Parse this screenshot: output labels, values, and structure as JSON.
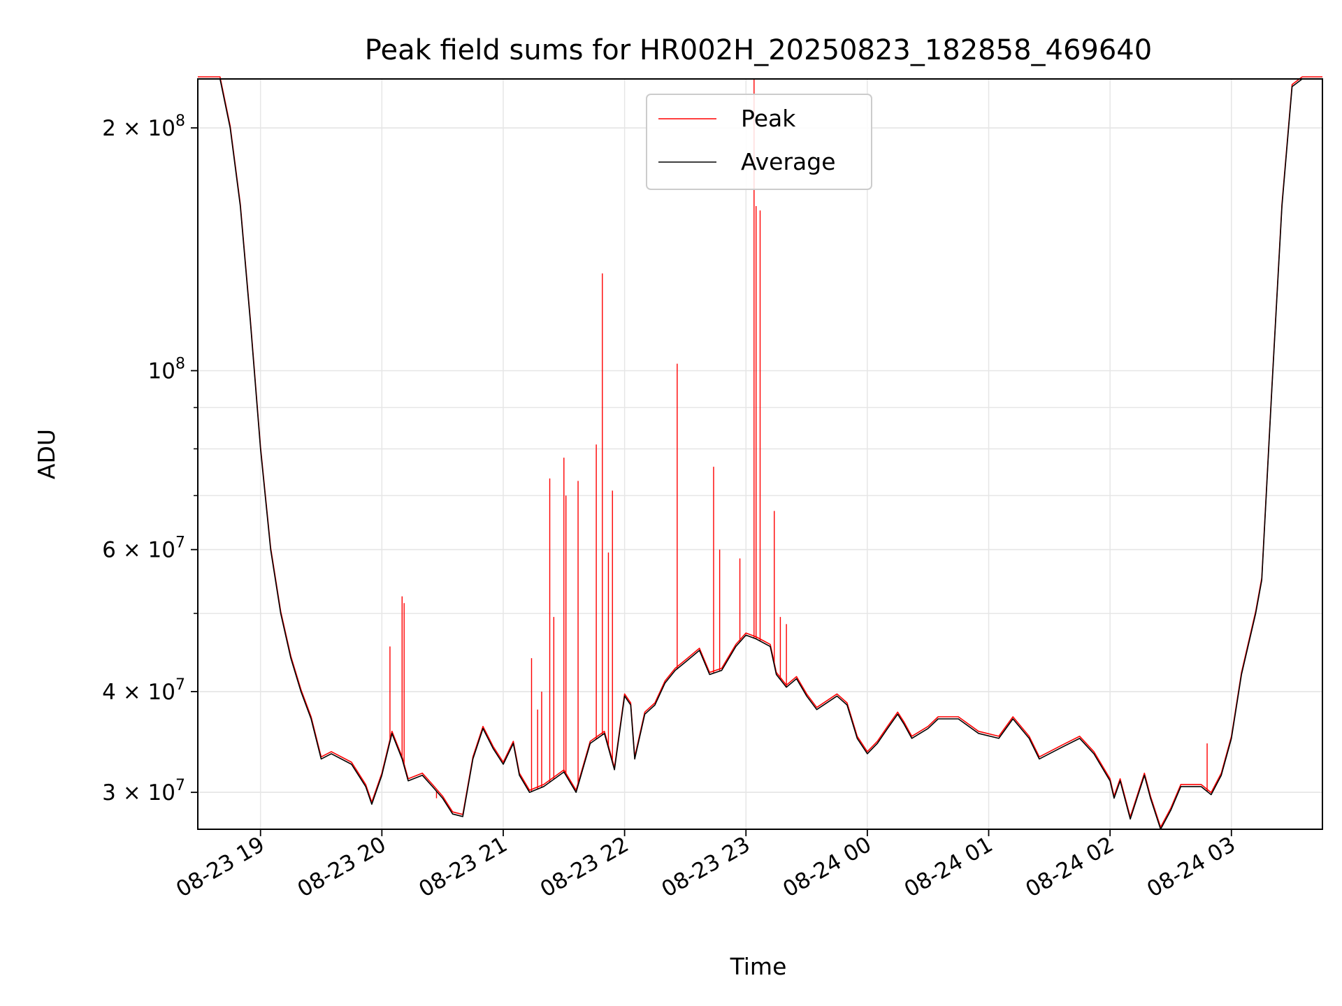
{
  "chart_data": {
    "type": "line",
    "title": "Peak field sums for HR002H_20250823_182858_469640",
    "xlabel": "Time",
    "ylabel": "ADU",
    "yscale": "log",
    "grid": true,
    "legend_position": "top-center",
    "xlim": [
      "08-23 18:29",
      "08-24 03:45"
    ],
    "ylim": [
      27000000,
      230000000
    ],
    "x_ticks": [
      "08-23 19",
      "08-23 20",
      "08-23 21",
      "08-23 22",
      "08-23 23",
      "08-24 00",
      "08-24 01",
      "08-24 02",
      "08-24 03"
    ],
    "y_ticks": [
      {
        "value": 30000000,
        "label_mantissa": "3",
        "label_exp": "7"
      },
      {
        "value": 40000000,
        "label_mantissa": "4",
        "label_exp": "7"
      },
      {
        "value": 60000000,
        "label_mantissa": "6",
        "label_exp": "7"
      },
      {
        "value": 100000000,
        "label_mantissa": "",
        "label_exp": "8"
      },
      {
        "value": 200000000,
        "label_mantissa": "2",
        "label_exp": "8"
      }
    ],
    "series": [
      {
        "name": "Average",
        "color": "#000000",
        "points": [
          [
            "08-23 18:29",
            230000000
          ],
          [
            "08-23 18:40",
            230000000
          ],
          [
            "08-23 18:45",
            200000000
          ],
          [
            "08-23 18:50",
            160000000
          ],
          [
            "08-23 18:55",
            115000000
          ],
          [
            "08-23 19:00",
            80000000
          ],
          [
            "08-23 19:05",
            60000000
          ],
          [
            "08-23 19:10",
            50000000
          ],
          [
            "08-23 19:15",
            44000000
          ],
          [
            "08-23 19:20",
            40000000
          ],
          [
            "08-23 19:25",
            37000000
          ],
          [
            "08-23 19:30",
            33000000
          ],
          [
            "08-23 19:35",
            33500000
          ],
          [
            "08-23 19:45",
            32500000
          ],
          [
            "08-23 19:52",
            30500000
          ],
          [
            "08-23 19:55",
            29000000
          ],
          [
            "08-23 20:00",
            31500000
          ],
          [
            "08-23 20:05",
            35500000
          ],
          [
            "08-23 20:10",
            33000000
          ],
          [
            "08-23 20:13",
            31000000
          ],
          [
            "08-23 20:20",
            31500000
          ],
          [
            "08-23 20:25",
            30500000
          ],
          [
            "08-23 20:30",
            29500000
          ],
          [
            "08-23 20:35",
            28200000
          ],
          [
            "08-23 20:40",
            28000000
          ],
          [
            "08-23 20:45",
            33000000
          ],
          [
            "08-23 20:50",
            36000000
          ],
          [
            "08-23 20:55",
            34000000
          ],
          [
            "08-23 21:00",
            32500000
          ],
          [
            "08-23 21:05",
            34500000
          ],
          [
            "08-23 21:08",
            31500000
          ],
          [
            "08-23 21:13",
            30000000
          ],
          [
            "08-23 21:20",
            30500000
          ],
          [
            "08-23 21:30",
            31800000
          ],
          [
            "08-23 21:36",
            30000000
          ],
          [
            "08-23 21:43",
            34500000
          ],
          [
            "08-23 21:50",
            35500000
          ],
          [
            "08-23 21:55",
            32000000
          ],
          [
            "08-23 22:00",
            39500000
          ],
          [
            "08-23 22:03",
            38500000
          ],
          [
            "08-23 22:05",
            33000000
          ],
          [
            "08-23 22:10",
            37500000
          ],
          [
            "08-23 22:15",
            38500000
          ],
          [
            "08-23 22:20",
            41000000
          ],
          [
            "08-23 22:25",
            42500000
          ],
          [
            "08-23 22:30",
            43500000
          ],
          [
            "08-23 22:37",
            45000000
          ],
          [
            "08-23 22:42",
            42000000
          ],
          [
            "08-23 22:48",
            42500000
          ],
          [
            "08-23 22:55",
            45500000
          ],
          [
            "08-23 23:00",
            47000000
          ],
          [
            "08-23 23:05",
            46500000
          ],
          [
            "08-23 23:12",
            45500000
          ],
          [
            "08-23 23:15",
            42000000
          ],
          [
            "08-23 23:20",
            40500000
          ],
          [
            "08-23 23:25",
            41500000
          ],
          [
            "08-23 23:30",
            39500000
          ],
          [
            "08-23 23:35",
            38000000
          ],
          [
            "08-23 23:45",
            39500000
          ],
          [
            "08-23 23:50",
            38500000
          ],
          [
            "08-23 23:55",
            35000000
          ],
          [
            "08-24 00:00",
            33500000
          ],
          [
            "08-24 00:05",
            34500000
          ],
          [
            "08-24 00:10",
            36000000
          ],
          [
            "08-24 00:15",
            37500000
          ],
          [
            "08-24 00:18",
            36500000
          ],
          [
            "08-24 00:22",
            35000000
          ],
          [
            "08-24 00:30",
            36000000
          ],
          [
            "08-24 00:35",
            37000000
          ],
          [
            "08-24 00:45",
            37000000
          ],
          [
            "08-24 00:55",
            35500000
          ],
          [
            "08-24 01:05",
            35000000
          ],
          [
            "08-24 01:12",
            37000000
          ],
          [
            "08-24 01:20",
            35000000
          ],
          [
            "08-24 01:25",
            33000000
          ],
          [
            "08-24 01:35",
            34000000
          ],
          [
            "08-24 01:45",
            35000000
          ],
          [
            "08-24 01:52",
            33500000
          ],
          [
            "08-24 02:00",
            31000000
          ],
          [
            "08-24 02:02",
            29500000
          ],
          [
            "08-24 02:05",
            31000000
          ],
          [
            "08-24 02:10",
            27800000
          ],
          [
            "08-24 02:17",
            31500000
          ],
          [
            "08-24 02:20",
            29500000
          ],
          [
            "08-24 02:25",
            27000000
          ],
          [
            "08-24 02:30",
            28500000
          ],
          [
            "08-24 02:35",
            30500000
          ],
          [
            "08-24 02:45",
            30500000
          ],
          [
            "08-24 02:50",
            29800000
          ],
          [
            "08-24 02:55",
            31500000
          ],
          [
            "08-24 03:00",
            35000000
          ],
          [
            "08-24 03:05",
            42000000
          ],
          [
            "08-24 03:12",
            50000000
          ],
          [
            "08-24 03:15",
            55000000
          ],
          [
            "08-24 03:20",
            95000000
          ],
          [
            "08-24 03:25",
            160000000
          ],
          [
            "08-24 03:30",
            225000000
          ],
          [
            "08-24 03:35",
            230000000
          ],
          [
            "08-24 03:45",
            230000000
          ]
        ]
      },
      {
        "name": "Peak",
        "color": "#ff0000",
        "spikes": [
          [
            "08-23 20:04",
            45500000
          ],
          [
            "08-23 20:10",
            52500000
          ],
          [
            "08-23 20:11",
            51500000
          ],
          [
            "08-23 20:27",
            29500000
          ],
          [
            "08-23 21:14",
            44000000
          ],
          [
            "08-23 21:17",
            38000000
          ],
          [
            "08-23 21:19",
            40000000
          ],
          [
            "08-23 21:23",
            73500000
          ],
          [
            "08-23 21:25",
            49500000
          ],
          [
            "08-23 21:30",
            78000000
          ],
          [
            "08-23 21:31",
            70000000
          ],
          [
            "08-23 21:37",
            73000000
          ],
          [
            "08-23 21:46",
            81000000
          ],
          [
            "08-23 21:49",
            132000000
          ],
          [
            "08-23 21:52",
            59500000
          ],
          [
            "08-23 21:54",
            71000000
          ],
          [
            "08-23 22:26",
            102000000
          ],
          [
            "08-23 22:44",
            76000000
          ],
          [
            "08-23 22:47",
            60000000
          ],
          [
            "08-23 22:57",
            58500000
          ],
          [
            "08-23 23:04",
            230000000
          ],
          [
            "08-23 23:05",
            160000000
          ],
          [
            "08-23 23:07",
            158000000
          ],
          [
            "08-23 23:14",
            67000000
          ],
          [
            "08-23 23:17",
            49500000
          ],
          [
            "08-23 23:20",
            48500000
          ],
          [
            "08-24 02:48",
            34500000
          ]
        ]
      }
    ]
  }
}
